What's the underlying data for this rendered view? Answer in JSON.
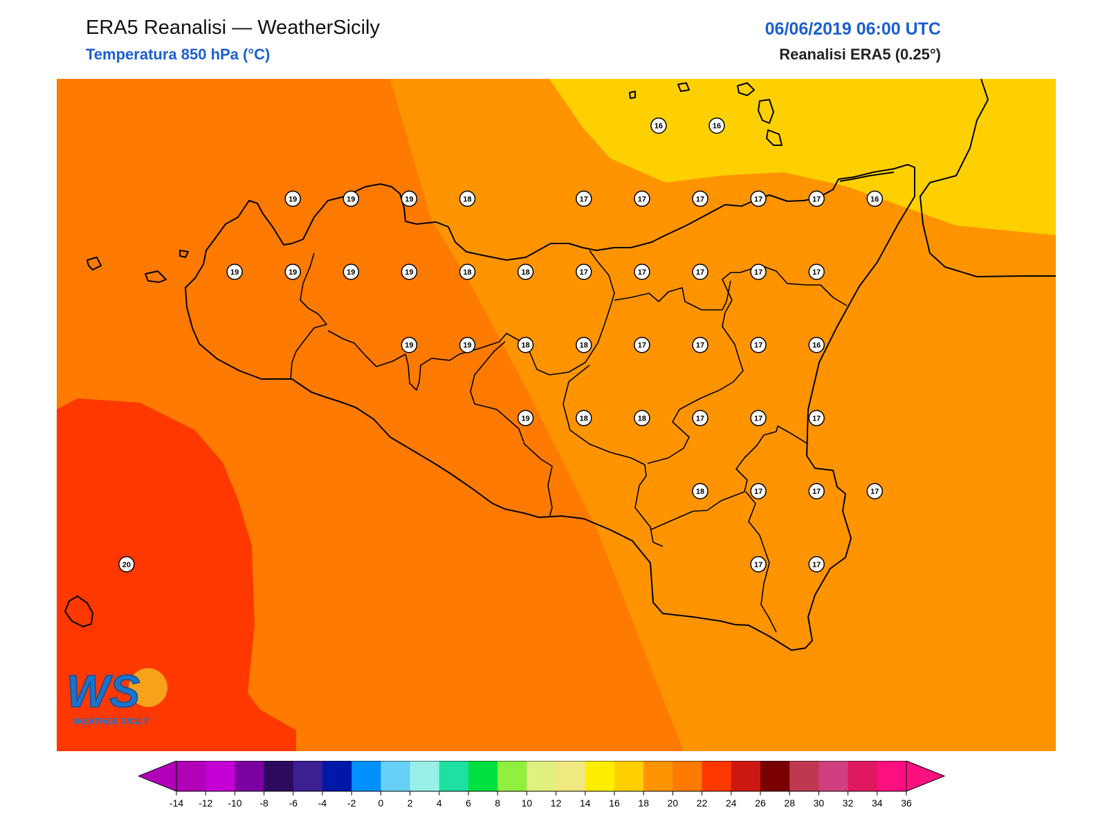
{
  "header": {
    "title": "ERA5 Reanalisi — WeatherSicily",
    "subtitle": "Temperatura 850 hPa (°C)",
    "datetime": "06/06/2019 06:00 UTC",
    "model": "Reanalisi ERA5 (0.25°)"
  },
  "logo": {
    "letters": "WS",
    "caption": "WEATHER SICILY"
  },
  "colors": {
    "band_16_18": "#FFD000",
    "band_18_20": "#FF9400",
    "band_20_22": "#FF7A00",
    "band_22_24": "#FF3800",
    "coastline": "#000000",
    "title_blue": "#1a5fd0"
  },
  "colorbar": {
    "ticks": [
      "-14",
      "-12",
      "-10",
      "-8",
      "-6",
      "-4",
      "-2",
      "0",
      "2",
      "4",
      "6",
      "8",
      "10",
      "12",
      "14",
      "16",
      "18",
      "20",
      "22",
      "24",
      "26",
      "28",
      "30",
      "32",
      "34",
      "36"
    ],
    "colors": [
      "#b000b8",
      "#c400d4",
      "#7a00a0",
      "#2e0a5e",
      "#3a2090",
      "#0018a8",
      "#0090ff",
      "#68cff8",
      "#98f0e8",
      "#1ee0a0",
      "#00e040",
      "#90f040",
      "#e0f080",
      "#f0e880",
      "#ffee00",
      "#ffd000",
      "#ff9400",
      "#ff7a00",
      "#ff3800",
      "#cc1810",
      "#7a0000",
      "#c03850",
      "#d04080",
      "#e01860",
      "#ff1080"
    ],
    "left_arrow_color": "#b000b8",
    "right_arrow_color": "#ff1080"
  },
  "stations": [
    {
      "v": "16",
      "lon": 15.2,
      "lat": 38.85
    },
    {
      "v": "16",
      "lon": 15.55,
      "lat": 38.85
    },
    {
      "v": "19",
      "lon": 13.0,
      "lat": 38.35
    },
    {
      "v": "19",
      "lon": 13.35,
      "lat": 38.35
    },
    {
      "v": "19",
      "lon": 13.7,
      "lat": 38.35
    },
    {
      "v": "18",
      "lon": 14.05,
      "lat": 38.35
    },
    {
      "v": "17",
      "lon": 14.75,
      "lat": 38.35
    },
    {
      "v": "17",
      "lon": 15.1,
      "lat": 38.35
    },
    {
      "v": "17",
      "lon": 15.45,
      "lat": 38.35
    },
    {
      "v": "17",
      "lon": 15.8,
      "lat": 38.35
    },
    {
      "v": "17",
      "lon": 16.15,
      "lat": 38.35
    },
    {
      "v": "16",
      "lon": 16.5,
      "lat": 38.35
    },
    {
      "v": "19",
      "lon": 12.65,
      "lat": 37.85
    },
    {
      "v": "19",
      "lon": 13.0,
      "lat": 37.85
    },
    {
      "v": "19",
      "lon": 13.35,
      "lat": 37.85
    },
    {
      "v": "19",
      "lon": 13.7,
      "lat": 37.85
    },
    {
      "v": "18",
      "lon": 14.05,
      "lat": 37.85
    },
    {
      "v": "18",
      "lon": 14.4,
      "lat": 37.85
    },
    {
      "v": "17",
      "lon": 14.75,
      "lat": 37.85
    },
    {
      "v": "17",
      "lon": 15.1,
      "lat": 37.85
    },
    {
      "v": "17",
      "lon": 15.45,
      "lat": 37.85
    },
    {
      "v": "17",
      "lon": 15.8,
      "lat": 37.85
    },
    {
      "v": "17",
      "lon": 16.15,
      "lat": 37.85
    },
    {
      "v": "19",
      "lon": 13.7,
      "lat": 37.35
    },
    {
      "v": "19",
      "lon": 14.05,
      "lat": 37.35
    },
    {
      "v": "18",
      "lon": 14.4,
      "lat": 37.35
    },
    {
      "v": "18",
      "lon": 14.75,
      "lat": 37.35
    },
    {
      "v": "17",
      "lon": 15.1,
      "lat": 37.35
    },
    {
      "v": "17",
      "lon": 15.45,
      "lat": 37.35
    },
    {
      "v": "17",
      "lon": 15.8,
      "lat": 37.35
    },
    {
      "v": "16",
      "lon": 16.15,
      "lat": 37.35
    },
    {
      "v": "19",
      "lon": 14.4,
      "lat": 36.85
    },
    {
      "v": "18",
      "lon": 14.75,
      "lat": 36.85
    },
    {
      "v": "18",
      "lon": 15.1,
      "lat": 36.85
    },
    {
      "v": "17",
      "lon": 15.45,
      "lat": 36.85
    },
    {
      "v": "17",
      "lon": 15.8,
      "lat": 36.85
    },
    {
      "v": "17",
      "lon": 16.15,
      "lat": 36.85
    },
    {
      "v": "18",
      "lon": 15.45,
      "lat": 36.35
    },
    {
      "v": "17",
      "lon": 15.8,
      "lat": 36.35
    },
    {
      "v": "17",
      "lon": 16.15,
      "lat": 36.35
    },
    {
      "v": "17",
      "lon": 16.5,
      "lat": 36.35
    },
    {
      "v": "17",
      "lon": 15.8,
      "lat": 35.85
    },
    {
      "v": "17",
      "lon": 16.15,
      "lat": 35.85
    },
    {
      "v": "20",
      "lon": 12.0,
      "lat": 35.85
    }
  ]
}
